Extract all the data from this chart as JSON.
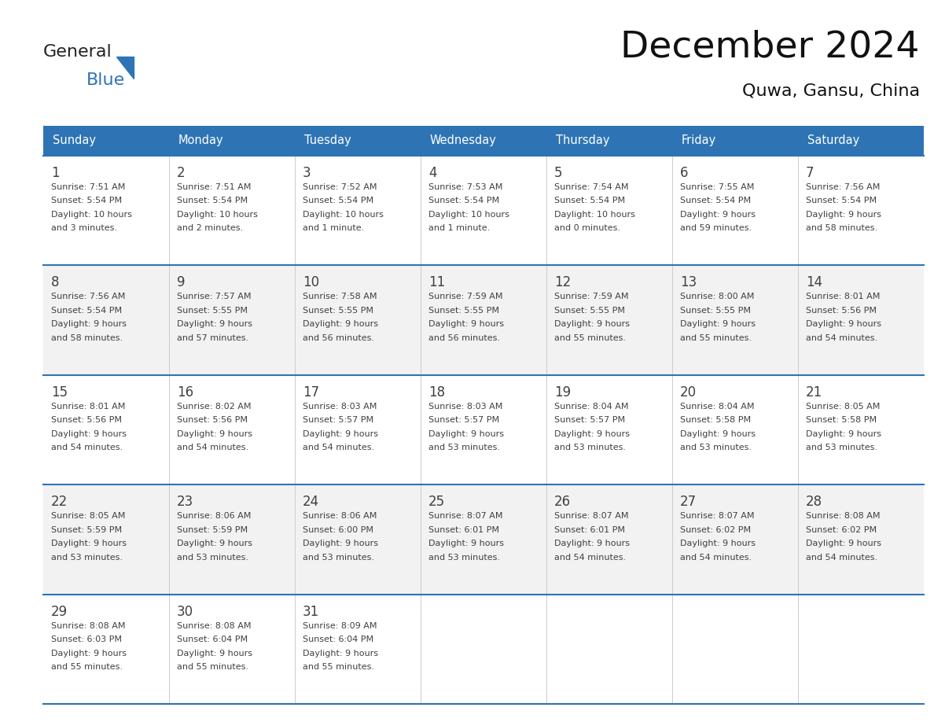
{
  "title": "December 2024",
  "subtitle": "Quwa, Gansu, China",
  "header_color": "#2E74B5",
  "header_text_color": "#FFFFFF",
  "day_names": [
    "Sunday",
    "Monday",
    "Tuesday",
    "Wednesday",
    "Thursday",
    "Friday",
    "Saturday"
  ],
  "bg_color": "#FFFFFF",
  "row_bg_even": "#FFFFFF",
  "row_bg_odd": "#F2F2F2",
  "cell_border_color": "#2E74B5",
  "text_color": "#404040",
  "logo_general_color": "#222222",
  "logo_blue_color": "#2E74B5",
  "days": [
    {
      "day": 1,
      "col": 0,
      "row": 0,
      "sunrise": "7:51 AM",
      "sunset": "5:54 PM",
      "daylight_hours": 10,
      "daylight_minutes": 3
    },
    {
      "day": 2,
      "col": 1,
      "row": 0,
      "sunrise": "7:51 AM",
      "sunset": "5:54 PM",
      "daylight_hours": 10,
      "daylight_minutes": 2
    },
    {
      "day": 3,
      "col": 2,
      "row": 0,
      "sunrise": "7:52 AM",
      "sunset": "5:54 PM",
      "daylight_hours": 10,
      "daylight_minutes": 1
    },
    {
      "day": 4,
      "col": 3,
      "row": 0,
      "sunrise": "7:53 AM",
      "sunset": "5:54 PM",
      "daylight_hours": 10,
      "daylight_minutes": 1
    },
    {
      "day": 5,
      "col": 4,
      "row": 0,
      "sunrise": "7:54 AM",
      "sunset": "5:54 PM",
      "daylight_hours": 10,
      "daylight_minutes": 0
    },
    {
      "day": 6,
      "col": 5,
      "row": 0,
      "sunrise": "7:55 AM",
      "sunset": "5:54 PM",
      "daylight_hours": 9,
      "daylight_minutes": 59
    },
    {
      "day": 7,
      "col": 6,
      "row": 0,
      "sunrise": "7:56 AM",
      "sunset": "5:54 PM",
      "daylight_hours": 9,
      "daylight_minutes": 58
    },
    {
      "day": 8,
      "col": 0,
      "row": 1,
      "sunrise": "7:56 AM",
      "sunset": "5:54 PM",
      "daylight_hours": 9,
      "daylight_minutes": 58
    },
    {
      "day": 9,
      "col": 1,
      "row": 1,
      "sunrise": "7:57 AM",
      "sunset": "5:55 PM",
      "daylight_hours": 9,
      "daylight_minutes": 57
    },
    {
      "day": 10,
      "col": 2,
      "row": 1,
      "sunrise": "7:58 AM",
      "sunset": "5:55 PM",
      "daylight_hours": 9,
      "daylight_minutes": 56
    },
    {
      "day": 11,
      "col": 3,
      "row": 1,
      "sunrise": "7:59 AM",
      "sunset": "5:55 PM",
      "daylight_hours": 9,
      "daylight_minutes": 56
    },
    {
      "day": 12,
      "col": 4,
      "row": 1,
      "sunrise": "7:59 AM",
      "sunset": "5:55 PM",
      "daylight_hours": 9,
      "daylight_minutes": 55
    },
    {
      "day": 13,
      "col": 5,
      "row": 1,
      "sunrise": "8:00 AM",
      "sunset": "5:55 PM",
      "daylight_hours": 9,
      "daylight_minutes": 55
    },
    {
      "day": 14,
      "col": 6,
      "row": 1,
      "sunrise": "8:01 AM",
      "sunset": "5:56 PM",
      "daylight_hours": 9,
      "daylight_minutes": 54
    },
    {
      "day": 15,
      "col": 0,
      "row": 2,
      "sunrise": "8:01 AM",
      "sunset": "5:56 PM",
      "daylight_hours": 9,
      "daylight_minutes": 54
    },
    {
      "day": 16,
      "col": 1,
      "row": 2,
      "sunrise": "8:02 AM",
      "sunset": "5:56 PM",
      "daylight_hours": 9,
      "daylight_minutes": 54
    },
    {
      "day": 17,
      "col": 2,
      "row": 2,
      "sunrise": "8:03 AM",
      "sunset": "5:57 PM",
      "daylight_hours": 9,
      "daylight_minutes": 54
    },
    {
      "day": 18,
      "col": 3,
      "row": 2,
      "sunrise": "8:03 AM",
      "sunset": "5:57 PM",
      "daylight_hours": 9,
      "daylight_minutes": 53
    },
    {
      "day": 19,
      "col": 4,
      "row": 2,
      "sunrise": "8:04 AM",
      "sunset": "5:57 PM",
      "daylight_hours": 9,
      "daylight_minutes": 53
    },
    {
      "day": 20,
      "col": 5,
      "row": 2,
      "sunrise": "8:04 AM",
      "sunset": "5:58 PM",
      "daylight_hours": 9,
      "daylight_minutes": 53
    },
    {
      "day": 21,
      "col": 6,
      "row": 2,
      "sunrise": "8:05 AM",
      "sunset": "5:58 PM",
      "daylight_hours": 9,
      "daylight_minutes": 53
    },
    {
      "day": 22,
      "col": 0,
      "row": 3,
      "sunrise": "8:05 AM",
      "sunset": "5:59 PM",
      "daylight_hours": 9,
      "daylight_minutes": 53
    },
    {
      "day": 23,
      "col": 1,
      "row": 3,
      "sunrise": "8:06 AM",
      "sunset": "5:59 PM",
      "daylight_hours": 9,
      "daylight_minutes": 53
    },
    {
      "day": 24,
      "col": 2,
      "row": 3,
      "sunrise": "8:06 AM",
      "sunset": "6:00 PM",
      "daylight_hours": 9,
      "daylight_minutes": 53
    },
    {
      "day": 25,
      "col": 3,
      "row": 3,
      "sunrise": "8:07 AM",
      "sunset": "6:01 PM",
      "daylight_hours": 9,
      "daylight_minutes": 53
    },
    {
      "day": 26,
      "col": 4,
      "row": 3,
      "sunrise": "8:07 AM",
      "sunset": "6:01 PM",
      "daylight_hours": 9,
      "daylight_minutes": 54
    },
    {
      "day": 27,
      "col": 5,
      "row": 3,
      "sunrise": "8:07 AM",
      "sunset": "6:02 PM",
      "daylight_hours": 9,
      "daylight_minutes": 54
    },
    {
      "day": 28,
      "col": 6,
      "row": 3,
      "sunrise": "8:08 AM",
      "sunset": "6:02 PM",
      "daylight_hours": 9,
      "daylight_minutes": 54
    },
    {
      "day": 29,
      "col": 0,
      "row": 4,
      "sunrise": "8:08 AM",
      "sunset": "6:03 PM",
      "daylight_hours": 9,
      "daylight_minutes": 55
    },
    {
      "day": 30,
      "col": 1,
      "row": 4,
      "sunrise": "8:08 AM",
      "sunset": "6:04 PM",
      "daylight_hours": 9,
      "daylight_minutes": 55
    },
    {
      "day": 31,
      "col": 2,
      "row": 4,
      "sunrise": "8:09 AM",
      "sunset": "6:04 PM",
      "daylight_hours": 9,
      "daylight_minutes": 55
    }
  ]
}
